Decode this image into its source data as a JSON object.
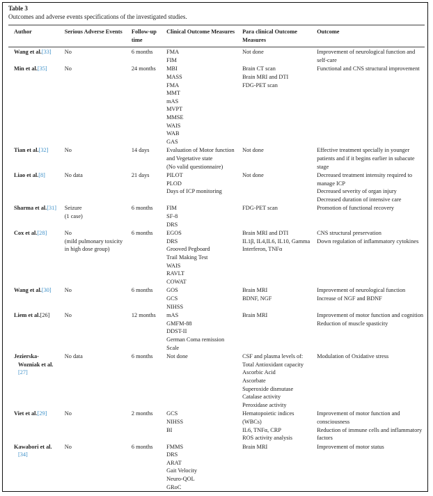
{
  "table_label": "Table 3",
  "caption": "Outcomes and adverse events specifications of the investigated studies.",
  "colors": {
    "reference_link": "#3b8fc8"
  },
  "headers": [
    "Author",
    "Serious Adverse Events",
    "Follow-up time",
    "Clinical Outcome Measures",
    "Para clinical Outcome Measures",
    "Outcome"
  ],
  "rows": [
    {
      "author": "Wang et al.",
      "ref": "[33]",
      "sae": [
        "No"
      ],
      "followup": "6 months",
      "clinical": [
        "FMA",
        "FIM"
      ],
      "paraclinical": [
        "Not done"
      ],
      "outcome": [
        "Improvement of neurological function and",
        "self-care"
      ]
    },
    {
      "author": "Min et al.",
      "ref": "[35]",
      "sae": [
        "No"
      ],
      "followup": "24 months",
      "clinical": [
        "MBI",
        "MASS",
        "FMA",
        "MMT",
        "mAS",
        "MVPT",
        "MMSE",
        "WAIS",
        "WAB",
        "GAS"
      ],
      "paraclinical": [
        "Brain CT scan",
        "Brain MRI and DTI",
        "FDG-PET scan"
      ],
      "outcome": [
        "Functional and CNS structural improvement"
      ]
    },
    {
      "author": "Tian et al.",
      "ref": "[32]",
      "sae": [
        "No"
      ],
      "followup": "14 days",
      "clinical": [
        "Evaluation of Motor function",
        "and Vegetative state",
        "(No valid questionnaire)"
      ],
      "paraclinical": [
        "Not done"
      ],
      "outcome": [
        "Effective treatment specially in younger",
        "patients and if it begins earlier in subacute",
        "stage"
      ]
    },
    {
      "author": "Liao et al.",
      "ref": "[8]",
      "sae": [
        "No data"
      ],
      "followup": "21 days",
      "clinical": [
        "PILOT",
        "PLOD",
        "Days of ICP monitoring"
      ],
      "paraclinical": [
        "Not done"
      ],
      "outcome": [
        "Decreased treatment intensity required to",
        "manage ICP",
        "Decreased severity of organ injury",
        "Decreased duration of intensive care"
      ]
    },
    {
      "author": "Sharma et al.",
      "ref": "[31]",
      "sae": [
        "Seizure",
        "(1 case)"
      ],
      "followup": "6 months",
      "clinical": [
        "FIM",
        "SF-8",
        "DRS"
      ],
      "paraclinical": [
        "FDG-PET scan"
      ],
      "outcome": [
        "Promotion of functional recovery"
      ]
    },
    {
      "author": "Cox et al.",
      "ref": "[28]",
      "sae": [
        "No",
        "(mild pulmonary toxicity",
        "in high dose group)"
      ],
      "followup": "6 months",
      "clinical": [
        "EGOS",
        "DRS",
        "Grooved Pegboard",
        "Trail Making Test",
        "WAIS",
        "RAVLT",
        "COWAT"
      ],
      "paraclinical": [
        "Brain MRI and DTI",
        "IL1β, IL4,IL6, IL10, Gamma",
        "Interferon, TNFα"
      ],
      "outcome": [
        "CNS structural preservation",
        "Down regulation of inflammatory cytokines"
      ]
    },
    {
      "author": "Wang et al.",
      "ref": "[30]",
      "sae": [
        "No"
      ],
      "followup": "6 months",
      "clinical": [
        "GOS",
        "GCS",
        "NIHSS"
      ],
      "paraclinical": [
        "Brain MRI",
        "BDNF, NGF"
      ],
      "outcome": [
        "Improvement of neurological function",
        "Increase of NGF and BDNF"
      ]
    },
    {
      "author": "Liem et al.",
      "ref": "[26]",
      "ref_plain": true,
      "sae": [
        "No"
      ],
      "followup": "12 months",
      "clinical": [
        "mAS",
        "GMFM-88",
        "DDST-II",
        "German Coma remission",
        "Scale"
      ],
      "paraclinical": [
        "Brain MRI"
      ],
      "outcome": [
        "Improvement of motor function and cognition",
        "Reduction of muscle spasticity"
      ]
    },
    {
      "author": "Jezierska-\nWozniak et al.",
      "author_lines": [
        "Jezierska-",
        "Wozniak et al."
      ],
      "ref": "[27]",
      "sae": [
        "No data"
      ],
      "followup": "6 months",
      "clinical": [
        "Not done"
      ],
      "paraclinical": [
        "CSF and plasma levels of:",
        "Total Antioxidant capacity",
        "Ascorbic Acid",
        "Ascorbate",
        "Superoxide dismutase",
        "Catalase activity",
        "Peroxidase activity"
      ],
      "outcome": [
        "Modulation of Oxidative stress"
      ]
    },
    {
      "author": "Viet et al.",
      "ref": "[29]",
      "sae": [
        "No"
      ],
      "followup": "2 months",
      "clinical": [
        "GCS",
        "NIHSS",
        "BI"
      ],
      "paraclinical": [
        "Hematopoietic indices",
        "(WBCs)",
        "IL6, TNFα, CRP",
        "ROS activity analysis"
      ],
      "outcome": [
        "Improvement of motor function and",
        "consciousness",
        "Reduction of immune cells and inflammatory",
        "factors"
      ]
    },
    {
      "author": "Kawabori et al.",
      "ref": "[34]",
      "ref_newline": true,
      "sae": [
        "No"
      ],
      "followup": "6 months",
      "clinical": [
        "FMMS",
        "DRS",
        "ARAT",
        "Gait Velocity",
        "Neuro-QOL",
        "GRoC"
      ],
      "paraclinical": [
        "Brain MRI"
      ],
      "outcome": [
        "Improvement of motor status"
      ]
    }
  ]
}
